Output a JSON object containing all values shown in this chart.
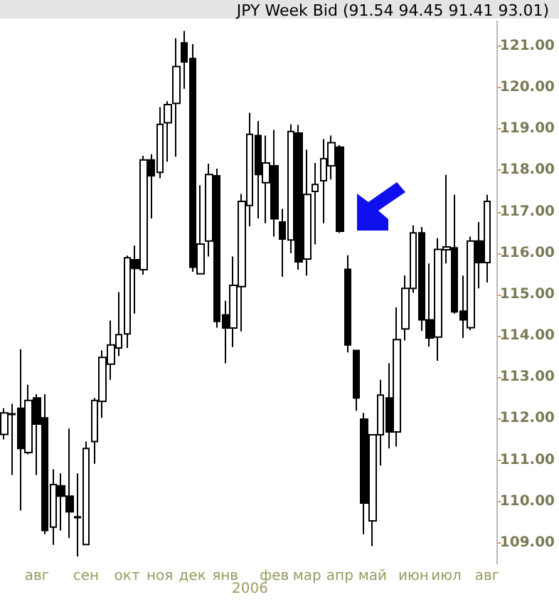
{
  "chart_data": {
    "type": "candlestick",
    "title": "JPY Week Bid (91.54 94.45 91.41 93.01)",
    "categories": [
      null,
      null,
      null,
      null,
      "авг",
      null,
      null,
      null,
      null,
      null,
      "сен",
      null,
      null,
      null,
      null,
      "окт",
      null,
      null,
      null,
      "ноя",
      null,
      null,
      null,
      "дек",
      null,
      null,
      null,
      "янв",
      null,
      null,
      null,
      null,
      null,
      "фев",
      null,
      null,
      null,
      "мар",
      null,
      null,
      null,
      "апр",
      null,
      null,
      null,
      "май",
      null,
      null,
      null,
      null,
      "июн",
      null,
      null,
      null,
      "июл",
      null,
      null,
      null,
      null,
      "авг"
    ],
    "ohlc": [
      [
        111.62,
        112.25,
        111.5,
        112.14
      ],
      [
        112.1,
        112.36,
        110.64,
        112.12
      ],
      [
        112.25,
        113.68,
        109.78,
        111.28
      ],
      [
        111.18,
        112.82,
        111.14,
        112.44
      ],
      [
        112.5,
        112.59,
        110.64,
        111.87
      ],
      [
        112.02,
        112.59,
        109.21,
        109.3
      ],
      [
        109.38,
        110.78,
        108.95,
        110.41
      ],
      [
        110.38,
        110.68,
        109.3,
        110.13
      ],
      [
        110.13,
        111.76,
        109.12,
        109.75
      ],
      [
        109.61,
        110.68,
        108.67,
        109.63
      ],
      [
        108.96,
        111.45,
        108.96,
        111.28
      ],
      [
        111.45,
        112.5,
        110.91,
        112.44
      ],
      [
        112.42,
        113.65,
        112.02,
        113.48
      ],
      [
        113.32,
        114.37,
        112.94,
        113.78
      ],
      [
        113.71,
        115.06,
        113.51,
        114.03
      ],
      [
        114.05,
        115.94,
        113.71,
        115.89
      ],
      [
        115.84,
        116.18,
        114.54,
        115.63
      ],
      [
        115.6,
        118.35,
        115.48,
        118.25
      ],
      [
        118.25,
        118.39,
        116.84,
        117.87
      ],
      [
        117.95,
        119.53,
        117.81,
        119.11
      ],
      [
        119.15,
        119.67,
        118.21,
        119.59
      ],
      [
        119.62,
        121.19,
        118.33,
        120.51
      ],
      [
        121.08,
        121.37,
        119.97,
        120.62
      ],
      [
        120.7,
        121.05,
        115.55,
        115.66
      ],
      [
        115.5,
        117.64,
        115.5,
        116.22
      ],
      [
        116.29,
        118.16,
        115.92,
        117.9
      ],
      [
        117.87,
        118.04,
        114.2,
        114.35
      ],
      [
        114.51,
        114.85,
        113.34,
        114.19
      ],
      [
        114.19,
        115.92,
        113.73,
        115.22
      ],
      [
        115.19,
        117.43,
        114.11,
        117.25
      ],
      [
        117.15,
        119.39,
        116.65,
        118.87
      ],
      [
        118.84,
        119.19,
        116.84,
        117.9
      ],
      [
        117.7,
        118.84,
        116.72,
        118.18
      ],
      [
        118.11,
        118.98,
        116.4,
        116.83
      ],
      [
        116.75,
        117.07,
        115.43,
        116.34
      ],
      [
        116.32,
        119.11,
        116.0,
        118.94
      ],
      [
        118.9,
        119.1,
        115.6,
        115.79
      ],
      [
        115.86,
        118.5,
        115.46,
        117.42
      ],
      [
        117.49,
        118.18,
        116.21,
        117.66
      ],
      [
        117.75,
        118.76,
        116.72,
        118.28
      ],
      [
        118.11,
        118.84,
        117.78,
        118.67
      ],
      [
        118.56,
        118.61,
        116.49,
        116.53
      ],
      [
        115.61,
        115.95,
        113.6,
        113.78
      ],
      [
        113.65,
        113.65,
        112.19,
        112.5
      ],
      [
        111.99,
        112.14,
        109.21,
        109.96
      ],
      [
        109.53,
        111.61,
        108.92,
        111.61
      ],
      [
        111.61,
        112.94,
        110.87,
        112.57
      ],
      [
        112.5,
        113.34,
        111.28,
        111.68
      ],
      [
        111.68,
        114.69,
        111.33,
        113.91
      ],
      [
        114.17,
        115.46,
        113.89,
        115.15
      ],
      [
        115.15,
        116.67,
        115.04,
        116.49
      ],
      [
        116.49,
        116.63,
        114.12,
        114.39
      ],
      [
        114.39,
        115.75,
        113.74,
        113.95
      ],
      [
        113.97,
        116.36,
        113.4,
        116.09
      ],
      [
        116.08,
        117.89,
        115.75,
        116.15
      ],
      [
        116.13,
        117.41,
        114.54,
        114.58
      ],
      [
        114.6,
        115.46,
        113.95,
        114.39
      ],
      [
        114.2,
        116.4,
        114.14,
        116.29
      ],
      [
        116.29,
        116.75,
        115.15,
        115.77
      ],
      [
        115.77,
        117.41,
        115.29,
        117.25
      ]
    ],
    "ylim": [
      108.5,
      121.6
    ],
    "yticks": [
      {
        "value": 109,
        "label": "109.00"
      },
      {
        "value": 110,
        "label": "110.00"
      },
      {
        "value": 111,
        "label": "111.00"
      },
      {
        "value": 112,
        "label": "112.00"
      },
      {
        "value": 113,
        "label": "113.00"
      },
      {
        "value": 114,
        "label": "114.00"
      },
      {
        "value": 115,
        "label": "115.00"
      },
      {
        "value": 116,
        "label": "116.00"
      },
      {
        "value": 117,
        "label": "117.00"
      },
      {
        "value": 118,
        "label": "118.00"
      },
      {
        "value": 119,
        "label": "119.00"
      },
      {
        "value": 120,
        "label": "120.00"
      },
      {
        "value": 121,
        "label": "121.00"
      }
    ],
    "annotations": [
      "2006"
    ],
    "grid": false
  }
}
